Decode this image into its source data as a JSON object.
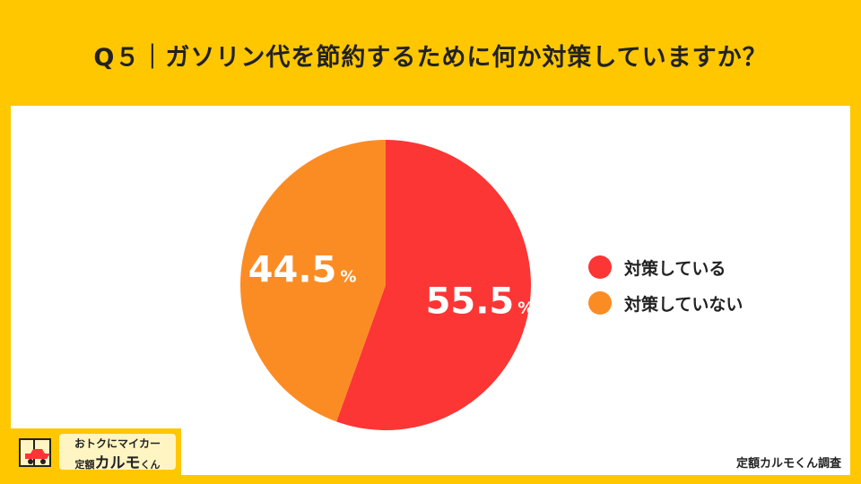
{
  "title": "Q５｜ガソリン代を節約するために何か対策していますか？",
  "chart_data": {
    "type": "pie",
    "title": "Q５｜ガソリン代を節約するために何か対策していますか？",
    "slices": [
      {
        "label": "対策している",
        "value": 55.5,
        "display": "55.5",
        "color": "#fc3535"
      },
      {
        "label": "対策していない",
        "value": 44.5,
        "display": "44.5",
        "color": "#fb8c24"
      }
    ],
    "unit": "%",
    "start": "12 o'clock",
    "direction": "clockwise",
    "legend_position": "right"
  },
  "brand": {
    "line1": "おトクにマイカー",
    "line2_prefix": "定額",
    "line2_main": "カルモ",
    "line2_suffix": "くん"
  },
  "source": "定額カルモくん調査",
  "colors": {
    "background": "#ffc700",
    "panel": "#ffffff"
  }
}
